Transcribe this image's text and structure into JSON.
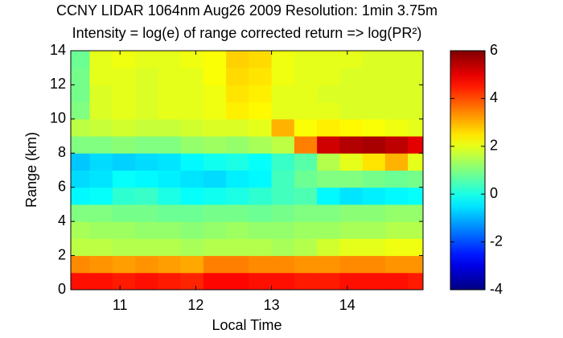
{
  "chart_data": {
    "type": "heatmap",
    "title": "CCNY LIDAR 1064nm Aug26 2009 Resolution: 1min 3.75m",
    "subtitle": "Intensity = log(e) of range corrected return => log(PR²)",
    "x_label": "Local Time",
    "y_label": "Range (km)",
    "xlim": [
      10.35,
      15.0
    ],
    "xticks": [
      11,
      12,
      13,
      14
    ],
    "ylim": [
      0,
      14
    ],
    "yticks": [
      0,
      2,
      4,
      6,
      8,
      10,
      12,
      14
    ],
    "xbins": [
      10.35,
      10.6,
      10.9,
      11.2,
      11.5,
      11.8,
      12.1,
      12.4,
      12.7,
      13.0,
      13.3,
      13.6,
      13.9,
      14.2,
      14.5,
      14.8,
      15.0
    ],
    "ybins": [
      0,
      1,
      2,
      3,
      4,
      5,
      6,
      7,
      8,
      9,
      10,
      11,
      12,
      13,
      14
    ],
    "values": [
      [
        4.6,
        4.6,
        4.5,
        4.6,
        4.5,
        4.4,
        4.7,
        4.7,
        4.6,
        4.6,
        4.5,
        4.5,
        4.6,
        4.6,
        4.6,
        4.5
      ],
      [
        3.4,
        3.3,
        3.2,
        3.3,
        3.2,
        3.1,
        3.5,
        3.5,
        3.4,
        3.4,
        3.3,
        3.3,
        3.4,
        3.4,
        3.3,
        3.3
      ],
      [
        1.6,
        1.6,
        1.5,
        1.5,
        1.5,
        1.4,
        1.5,
        1.5,
        1.5,
        1.4,
        1.5,
        1.8,
        2.0,
        2.0,
        2.1,
        2.1
      ],
      [
        1.4,
        1.3,
        1.3,
        1.2,
        1.2,
        1.1,
        1.2,
        1.3,
        1.2,
        1.2,
        1.3,
        1.3,
        1.4,
        1.4,
        1.5,
        1.5
      ],
      [
        1.0,
        1.0,
        0.9,
        0.9,
        0.8,
        0.8,
        0.9,
        0.9,
        0.8,
        0.9,
        1.0,
        1.0,
        1.1,
        1.1,
        1.2,
        1.2
      ],
      [
        -0.3,
        -0.2,
        0.2,
        0.3,
        0.0,
        -0.2,
        -0.1,
        0.0,
        0.2,
        0.4,
        0.5,
        -0.3,
        -0.5,
        -0.4,
        -0.3,
        -0.2
      ],
      [
        -0.6,
        -0.5,
        -0.2,
        -0.3,
        -0.4,
        -0.5,
        -0.6,
        -0.4,
        -0.3,
        0.4,
        0.8,
        1.0,
        1.0,
        0.9,
        0.8,
        0.9
      ],
      [
        -0.8,
        -0.6,
        -0.7,
        -0.6,
        -0.5,
        -0.3,
        -0.1,
        0.0,
        -0.2,
        0.3,
        0.6,
        1.5,
        2.0,
        2.5,
        3.0,
        2.0
      ],
      [
        1.0,
        1.0,
        1.1,
        1.0,
        1.0,
        1.2,
        1.3,
        1.2,
        1.4,
        1.6,
        3.5,
        5.2,
        5.5,
        5.6,
        5.4,
        5.0
      ],
      [
        1.6,
        1.7,
        1.8,
        1.7,
        1.7,
        1.8,
        1.9,
        1.9,
        2.0,
        3.0,
        2.2,
        2.4,
        2.3,
        2.2,
        2.1,
        2.0
      ],
      [
        1.0,
        1.9,
        2.0,
        1.9,
        2.0,
        2.0,
        2.1,
        2.4,
        2.3,
        2.0,
        2.0,
        2.0,
        1.9,
        1.9,
        1.9,
        1.9
      ],
      [
        0.9,
        1.9,
        2.0,
        1.9,
        2.0,
        2.0,
        2.1,
        2.5,
        2.4,
        2.0,
        2.0,
        1.9,
        1.9,
        1.9,
        1.9,
        1.9
      ],
      [
        0.9,
        2.0,
        2.0,
        1.9,
        2.0,
        2.0,
        2.2,
        2.6,
        2.5,
        2.1,
        2.0,
        2.0,
        1.9,
        1.9,
        1.9,
        1.9
      ],
      [
        0.8,
        2.0,
        2.1,
        2.0,
        2.0,
        2.1,
        2.2,
        2.7,
        2.6,
        2.1,
        2.0,
        2.0,
        2.0,
        1.9,
        1.9,
        1.9
      ]
    ],
    "colormap": "jet",
    "clim": [
      -4,
      6
    ],
    "cticks": [
      -4,
      -2,
      0,
      2,
      4,
      6
    ]
  }
}
